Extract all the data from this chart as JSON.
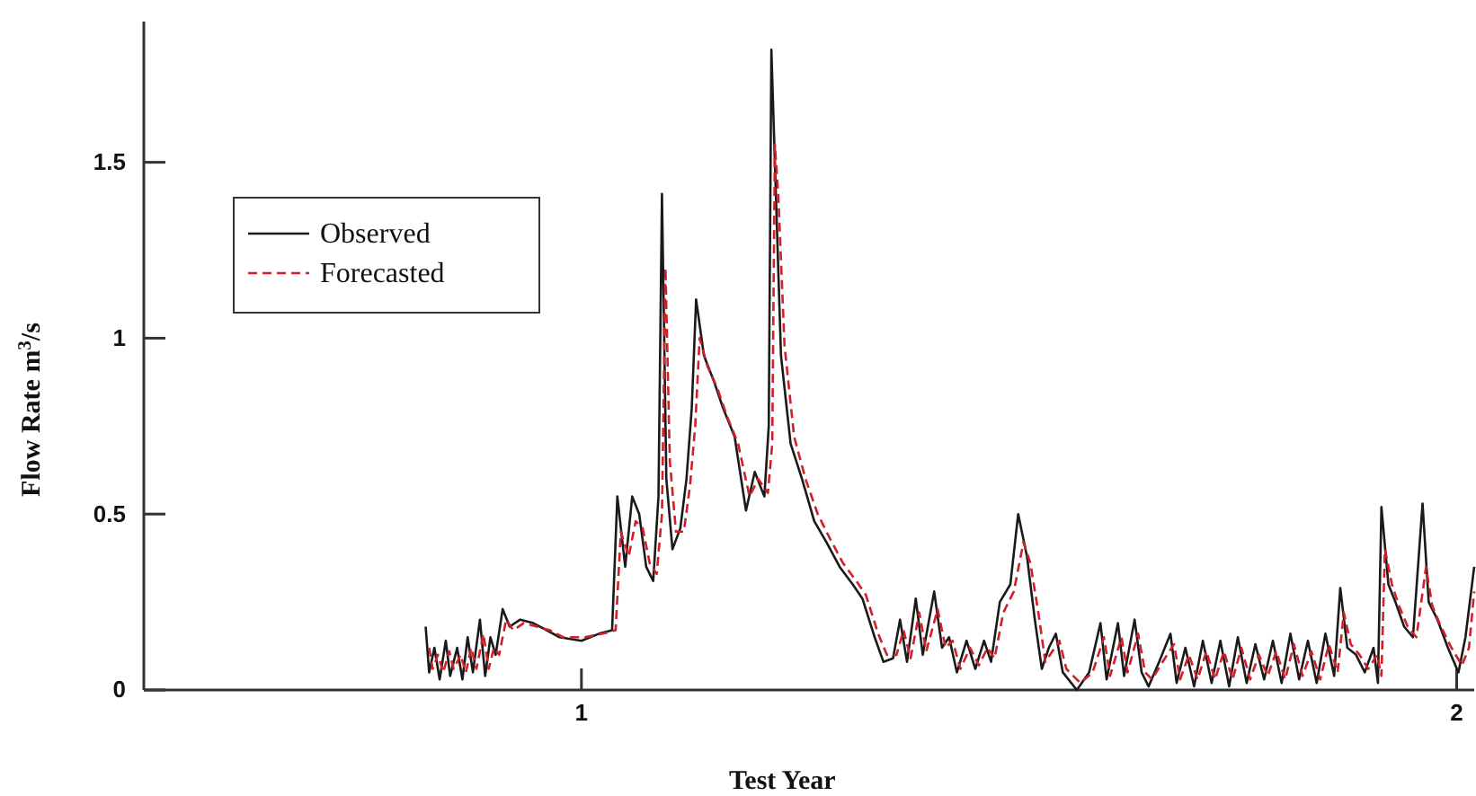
{
  "chart_data": {
    "type": "line",
    "xlabel": "Test Year",
    "ylabel": "Flow Rate m$^{3}$/s",
    "xlim": [
      0.5,
      2.02
    ],
    "xticks": [
      1,
      2
    ],
    "ylim": [
      0,
      1.9
    ],
    "yticks": [
      0,
      0.5,
      1,
      1.5
    ],
    "grid": false,
    "legend": "top left",
    "marker": "none",
    "series": [
      {
        "name": "Observed",
        "color": "#1a1a1a",
        "line_style": "solid",
        "x": [
          0.822,
          0.826,
          0.832,
          0.838,
          0.845,
          0.85,
          0.858,
          0.864,
          0.87,
          0.876,
          0.884,
          0.89,
          0.896,
          0.902,
          0.91,
          0.918,
          0.93,
          0.945,
          0.96,
          0.975,
          1.0,
          1.02,
          1.035,
          1.041,
          1.05,
          1.058,
          1.066,
          1.074,
          1.082,
          1.088,
          1.092,
          1.097,
          1.104,
          1.113,
          1.12,
          1.126,
          1.131,
          1.14,
          1.151,
          1.162,
          1.175,
          1.188,
          1.198,
          1.209,
          1.214,
          1.217,
          1.221,
          1.228,
          1.239,
          1.252,
          1.266,
          1.28,
          1.295,
          1.31,
          1.321,
          1.335,
          1.345,
          1.356,
          1.364,
          1.372,
          1.382,
          1.39,
          1.403,
          1.412,
          1.42,
          1.429,
          1.44,
          1.45,
          1.46,
          1.468,
          1.478,
          1.49,
          1.499,
          1.509,
          1.518,
          1.526,
          1.534,
          1.542,
          1.55,
          1.566,
          1.58,
          1.593,
          1.6,
          1.613,
          1.62,
          1.632,
          1.64,
          1.648,
          1.66,
          1.673,
          1.68,
          1.69,
          1.7,
          1.71,
          1.72,
          1.73,
          1.74,
          1.75,
          1.76,
          1.77,
          1.78,
          1.79,
          1.8,
          1.81,
          1.82,
          1.83,
          1.84,
          1.85,
          1.86,
          1.867,
          1.875,
          1.885,
          1.895,
          1.905,
          1.91,
          1.914,
          1.922,
          1.93,
          1.94,
          1.95,
          1.961,
          1.968,
          1.978,
          1.99,
          2.002,
          2.01,
          2.02
        ],
        "values": [
          0.18,
          0.05,
          0.12,
          0.03,
          0.14,
          0.04,
          0.12,
          0.03,
          0.15,
          0.05,
          0.2,
          0.04,
          0.15,
          0.1,
          0.23,
          0.18,
          0.2,
          0.19,
          0.17,
          0.15,
          0.14,
          0.16,
          0.17,
          0.55,
          0.35,
          0.55,
          0.5,
          0.35,
          0.31,
          0.55,
          1.41,
          0.6,
          0.4,
          0.46,
          0.6,
          0.8,
          1.11,
          0.95,
          0.88,
          0.8,
          0.72,
          0.51,
          0.62,
          0.55,
          0.75,
          1.82,
          1.5,
          0.95,
          0.7,
          0.6,
          0.48,
          0.42,
          0.35,
          0.3,
          0.26,
          0.15,
          0.08,
          0.09,
          0.2,
          0.08,
          0.26,
          0.1,
          0.28,
          0.12,
          0.15,
          0.05,
          0.14,
          0.06,
          0.14,
          0.08,
          0.25,
          0.3,
          0.5,
          0.38,
          0.2,
          0.06,
          0.12,
          0.16,
          0.05,
          0.0,
          0.05,
          0.19,
          0.03,
          0.19,
          0.04,
          0.2,
          0.05,
          0.01,
          0.08,
          0.16,
          0.02,
          0.12,
          0.01,
          0.14,
          0.02,
          0.14,
          0.01,
          0.15,
          0.02,
          0.13,
          0.03,
          0.14,
          0.02,
          0.16,
          0.03,
          0.14,
          0.02,
          0.16,
          0.04,
          0.29,
          0.12,
          0.1,
          0.05,
          0.12,
          0.02,
          0.52,
          0.3,
          0.25,
          0.18,
          0.15,
          0.53,
          0.25,
          0.2,
          0.12,
          0.05,
          0.15,
          0.35
        ]
      },
      {
        "name": "Forecasted",
        "color": "#d0202a",
        "line_style": "dashed",
        "x": [
          0.826,
          0.83,
          0.836,
          0.842,
          0.849,
          0.854,
          0.862,
          0.868,
          0.874,
          0.88,
          0.888,
          0.894,
          0.9,
          0.906,
          0.914,
          0.922,
          0.934,
          0.949,
          0.964,
          0.979,
          1.004,
          1.024,
          1.039,
          1.045,
          1.054,
          1.062,
          1.07,
          1.078,
          1.086,
          1.092,
          1.096,
          1.101,
          1.108,
          1.117,
          1.124,
          1.13,
          1.135,
          1.144,
          1.155,
          1.166,
          1.179,
          1.192,
          1.202,
          1.213,
          1.218,
          1.221,
          1.225,
          1.232,
          1.243,
          1.256,
          1.27,
          1.284,
          1.299,
          1.314,
          1.325,
          1.339,
          1.349,
          1.36,
          1.368,
          1.376,
          1.386,
          1.394,
          1.407,
          1.416,
          1.424,
          1.433,
          1.444,
          1.454,
          1.464,
          1.472,
          1.482,
          1.494,
          1.505,
          1.513,
          1.522,
          1.53,
          1.538,
          1.546,
          1.554,
          1.57,
          1.584,
          1.597,
          1.604,
          1.617,
          1.624,
          1.636,
          1.644,
          1.652,
          1.664,
          1.677,
          1.684,
          1.694,
          1.704,
          1.714,
          1.724,
          1.734,
          1.744,
          1.754,
          1.764,
          1.774,
          1.784,
          1.794,
          1.804,
          1.814,
          1.824,
          1.834,
          1.844,
          1.854,
          1.864,
          1.871,
          1.879,
          1.889,
          1.899,
          1.909,
          1.914,
          1.918,
          1.926,
          1.934,
          1.944,
          1.954,
          1.965,
          1.972,
          1.982,
          1.994,
          2.006,
          2.014,
          2.02
        ],
        "values": [
          0.12,
          0.06,
          0.1,
          0.05,
          0.11,
          0.06,
          0.1,
          0.05,
          0.12,
          0.06,
          0.16,
          0.06,
          0.12,
          0.1,
          0.2,
          0.17,
          0.19,
          0.18,
          0.17,
          0.15,
          0.15,
          0.16,
          0.17,
          0.45,
          0.38,
          0.48,
          0.46,
          0.36,
          0.33,
          0.5,
          1.2,
          0.65,
          0.45,
          0.45,
          0.58,
          0.75,
          1.0,
          0.92,
          0.86,
          0.78,
          0.7,
          0.55,
          0.6,
          0.56,
          0.7,
          1.55,
          1.4,
          0.98,
          0.72,
          0.6,
          0.5,
          0.43,
          0.36,
          0.31,
          0.27,
          0.16,
          0.1,
          0.1,
          0.17,
          0.09,
          0.22,
          0.11,
          0.23,
          0.12,
          0.14,
          0.06,
          0.12,
          0.07,
          0.12,
          0.09,
          0.22,
          0.28,
          0.42,
          0.36,
          0.22,
          0.08,
          0.11,
          0.14,
          0.06,
          0.02,
          0.05,
          0.15,
          0.04,
          0.15,
          0.05,
          0.16,
          0.05,
          0.03,
          0.08,
          0.13,
          0.03,
          0.1,
          0.03,
          0.11,
          0.03,
          0.11,
          0.03,
          0.12,
          0.03,
          0.1,
          0.04,
          0.11,
          0.03,
          0.13,
          0.04,
          0.11,
          0.03,
          0.13,
          0.05,
          0.22,
          0.13,
          0.1,
          0.06,
          0.1,
          0.04,
          0.4,
          0.3,
          0.24,
          0.18,
          0.15,
          0.35,
          0.24,
          0.18,
          0.12,
          0.07,
          0.12,
          0.28
        ]
      }
    ]
  }
}
